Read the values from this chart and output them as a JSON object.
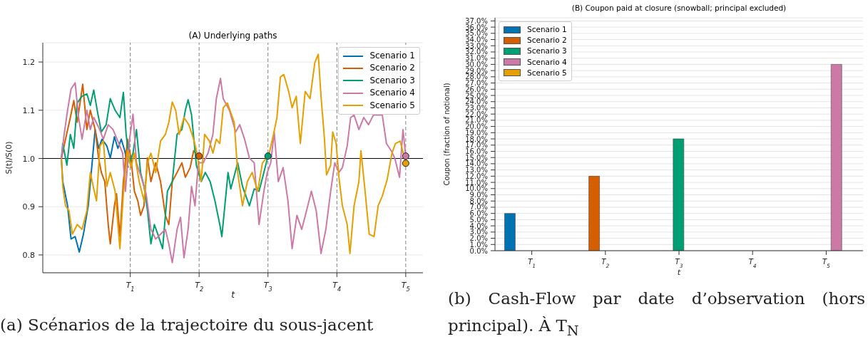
{
  "chart_data": [
    {
      "type": "line",
      "title": "(A) Underlying paths",
      "xlabel": "t",
      "ylabel": "S(t)/S(0)",
      "xlim": [
        -0.27,
        5.25
      ],
      "xticks": [
        {
          "value": 1,
          "label": "T$_{1}$"
        },
        {
          "value": 2,
          "label": "T$_{2}$"
        },
        {
          "value": 3,
          "label": "T$_{3}$"
        },
        {
          "value": 4,
          "label": "T$_{4}$"
        },
        {
          "value": 5,
          "label": "T$_{5}$"
        }
      ],
      "ylim": [
        0.763,
        1.24
      ],
      "yticks": [
        0.8,
        0.9,
        {
          "value": 1,
          "label": "1.0"
        },
        1.1,
        1.2
      ],
      "grid": "y",
      "legend": "top right",
      "marker": "none",
      "line_style": "solid",
      "ref_lines": [
        {
          "axis": "x",
          "value": 1,
          "color": "#808080",
          "line_style": "dashed"
        },
        {
          "axis": "x",
          "value": 2,
          "color": "#808080",
          "line_style": "dashed"
        },
        {
          "axis": "x",
          "value": 3,
          "color": "#808080",
          "line_style": "dashed"
        },
        {
          "axis": "x",
          "value": 4,
          "color": "#808080",
          "line_style": "dashed"
        },
        {
          "axis": "x",
          "value": 5,
          "color": "#808080",
          "line_style": "dashed"
        },
        {
          "axis": "y",
          "value": 1,
          "color": "#000000",
          "line_style": "solid"
        }
      ],
      "series": [
        {
          "name": "Scenario 1",
          "color": "#0072b2",
          "x": [
            0,
            0.02,
            0.09,
            0.14,
            0.2,
            0.26,
            0.32,
            0.39,
            0.44,
            0.49,
            0.54,
            0.59,
            0.66,
            0.71,
            0.77,
            0.82,
            0.87,
            0.92,
            0.97
          ],
          "values": [
            1,
            0.952,
            0.902,
            0.833,
            0.838,
            0.806,
            0.843,
            0.902,
            0.981,
            1.06,
            1.021,
            1.04,
            1.026,
            1.001,
            1.045,
            1.021,
            1.04,
            1.016,
            0.981
          ]
        },
        {
          "name": "Scenario 2",
          "color": "#d55e00",
          "x": [
            0,
            0.06,
            0.13,
            0.18,
            0.23,
            0.31,
            0.37,
            0.42,
            0.49,
            0.54,
            0.58,
            0.63,
            0.68,
            0.71,
            0.77,
            0.8,
            0.85,
            0.9,
            0.96,
            1.01,
            1.06,
            1.11,
            1.15,
            1.2,
            1.25,
            1.3,
            1.37,
            1.44,
            1.51,
            1.56,
            1.61,
            1.68,
            1.75,
            1.8,
            1.87,
            1.92,
            2
          ],
          "values": [
            1,
            1.04,
            1.085,
            1.12,
            1.075,
            1.154,
            1.06,
            1.1,
            1.06,
            1.001,
            0.971,
            0.952,
            0.863,
            0.823,
            0.902,
            0.927,
            0.838,
            0.952,
            1.04,
            1.001,
            0.932,
            0.912,
            0.882,
            0.902,
            1.001,
            0.952,
            0.991,
            0.952,
            0.882,
            0.863,
            0.952,
            0.971,
            0.991,
            0.961,
            0.981,
            1.016,
            1.005
          ]
        },
        {
          "name": "Scenario 3",
          "color": "#009e73",
          "x": [
            0,
            0.02,
            0.08,
            0.13,
            0.18,
            0.23,
            0.3,
            0.37,
            0.42,
            0.47,
            0.52,
            0.58,
            0.65,
            0.71,
            0.78,
            0.85,
            0.9,
            0.94,
            0.99,
            1.04,
            1.09,
            1.15,
            1.2,
            1.25,
            1.3,
            1.35,
            1.4,
            1.47,
            1.54,
            1.61,
            1.68,
            1.75,
            1.8,
            1.84,
            1.89,
            1.96,
            2.03,
            2.09,
            2.16,
            2.23,
            2.3,
            2.33,
            2.42,
            2.46,
            2.56,
            2.63,
            2.73,
            2.8,
            2.87,
            2.94,
            3
          ],
          "values": [
            1,
            1.031,
            0.986,
            1.05,
            1.021,
            1.115,
            1.129,
            1.134,
            1.11,
            1.142,
            1.1,
            1.055,
            1.07,
            1.124,
            1.1,
            1.085,
            1.137,
            1.05,
            0.991,
            1.011,
            1.06,
            0.971,
            0.942,
            0.892,
            0.823,
            0.863,
            0.843,
            0.813,
            0.932,
            0.952,
            1.05,
            1.06,
            1.1,
            1.122,
            1.09,
            0.986,
            0.952,
            0.971,
            0.952,
            0.912,
            0.863,
            0.838,
            0.971,
            0.937,
            0.991,
            0.942,
            0.902,
            0.937,
            0.932,
            0.971,
            1.005
          ]
        },
        {
          "name": "Scenario 4",
          "color": "#cc79a7",
          "x": [
            0,
            0.04,
            0.09,
            0.14,
            0.2,
            0.25,
            0.3,
            0.37,
            0.42,
            0.47,
            0.54,
            0.61,
            0.68,
            0.75,
            0.82,
            0.89,
            0.93,
            0.99,
            1.04,
            1.09,
            1.16,
            1.23,
            1.3,
            1.37,
            1.44,
            1.51,
            1.56,
            1.61,
            1.68,
            1.73,
            1.78,
            1.84,
            1.89,
            1.94,
            1.99,
            2.06,
            2.13,
            2.2,
            2.25,
            2.31,
            2.35,
            2.44,
            2.53,
            2.59,
            2.66,
            2.73,
            2.8,
            2.87,
            2.94,
            2.99,
            3.04,
            3.09,
            3.15,
            3.22,
            3.29,
            3.35,
            3.42,
            3.49,
            3.56,
            3.63,
            3.7,
            3.77,
            3.84,
            3.91,
            3.97,
            4.03,
            4.08,
            4.15,
            4.2,
            4.25,
            4.32,
            4.39,
            4.46,
            4.53,
            4.6,
            4.66,
            4.72,
            4.79,
            4.84,
            4.91,
            4.96,
            5
          ],
          "values": [
            1,
            1.05,
            1.1,
            1.144,
            1.157,
            1.085,
            1.04,
            1.1,
            1.06,
            1.085,
            1.065,
            1.04,
            1.07,
            1.06,
            1.036,
            1.011,
            0.932,
            1.04,
            1.092,
            0.991,
            0.961,
            0.927,
            0.853,
            0.833,
            0.843,
            0.853,
            0.823,
            0.784,
            0.853,
            0.878,
            0.794,
            0.853,
            0.942,
            0.902,
            0.991,
            0.991,
            1.011,
            1.05,
            1.124,
            1.166,
            1.124,
            1.1,
            1.055,
            1.07,
            1.04,
            1.001,
            0.991,
            0.863,
            0.932,
            0.971,
            0.991,
            1.055,
            0.952,
            0.981,
            0.912,
            0.813,
            0.882,
            0.853,
            0.892,
            0.932,
            0.892,
            0.803,
            0.853,
            0.932,
            0.991,
            0.971,
            0.981,
            1.026,
            1.085,
            1.09,
            1.06,
            1.085,
            1.07,
            1.09,
            1.09,
            1.09,
            1.031,
            1.016,
            1.001,
            0.961,
            1.06,
            1.005
          ]
        },
        {
          "name": "Scenario 5",
          "color": "#e69f00",
          "x": [
            0,
            0.02,
            0.06,
            0.11,
            0.16,
            0.23,
            0.3,
            0.37,
            0.42,
            0.47,
            0.51,
            0.56,
            0.61,
            0.66,
            0.71,
            0.78,
            0.85,
            0.9,
            0.96,
            1.01,
            1.06,
            1.13,
            1.2,
            1.25,
            1.3,
            1.37,
            1.44,
            1.51,
            1.56,
            1.61,
            1.66,
            1.71,
            1.78,
            1.85,
            1.92,
            1.97,
            2.03,
            2.08,
            2.15,
            2.2,
            2.25,
            2.3,
            2.35,
            2.41,
            2.51,
            2.56,
            2.63,
            2.7,
            2.77,
            2.85,
            2.92,
            3.01,
            3.08,
            3.13,
            3.18,
            3.23,
            3.3,
            3.35,
            3.41,
            3.47,
            3.54,
            3.61,
            3.68,
            3.73,
            3.77,
            3.82,
            3.85,
            3.91,
            3.94,
            3.99,
            4.03,
            4.08,
            4.15,
            4.19,
            4.25,
            4.32,
            4.35,
            4.41,
            4.47,
            4.54,
            4.6,
            4.66,
            4.73,
            4.8,
            4.85,
            4.92,
            5
          ],
          "values": [
            1,
            0.942,
            0.902,
            0.892,
            0.843,
            0.863,
            0.853,
            0.892,
            0.971,
            0.937,
            0.912,
            1.026,
            1.036,
            0.942,
            0.971,
            0.932,
            0.813,
            0.927,
            1.016,
            0.981,
            1.011,
            0.952,
            0.912,
            0.991,
            1.011,
            0.971,
            1.036,
            1.05,
            1.075,
            1.117,
            1.1,
            1.05,
            1.085,
            1.07,
            1.04,
            1.011,
            0.952,
            1.05,
            1.036,
            1.011,
            1.04,
            1.031,
            1.105,
            1.115,
            1.075,
            0.971,
            0.902,
            0.952,
            0.971,
            0.932,
            0.991,
            1.006,
            1.05,
            1.085,
            1.169,
            1.174,
            1.139,
            1.105,
            1.129,
            1.031,
            1.139,
            1.124,
            1.199,
            1.216,
            1.129,
            1.04,
            0.966,
            0.986,
            1.055,
            1.031,
            0.961,
            0.902,
            0.863,
            0.803,
            0.902,
            0.952,
            1.016,
            0.932,
            0.843,
            0.838,
            0.902,
            0.922,
            0.956,
            1.011,
            1.031,
            1.036,
            0.99
          ]
        },
        {
          "type": "scatter",
          "marker": "circle",
          "x": [
            2,
            3,
            5,
            5
          ],
          "values": [
            1.005,
            1.005,
            1.005,
            0.99
          ],
          "colors": [
            "#d55e00",
            "#009e73",
            "#cc79a7",
            "#e69f00"
          ]
        }
      ],
      "annotations": [
        "(a) Scénarios de la trajectoire du sous-jacent"
      ]
    },
    {
      "type": "bar",
      "title": "(B) Coupon paid at closure (snowball; principal excluded)",
      "xlabel": "t",
      "ylabel": "Coupon (fraction of notional)",
      "categories": [
        "T$_{1}$",
        "T$_{2}$",
        "T$_{3}$",
        "T$_{4}$",
        "T$_{5}$"
      ],
      "ylim": [
        0,
        37.5
      ],
      "yticks": [
        {
          "value": 0,
          "label": "0.0%"
        },
        {
          "value": 1,
          "label": "1.0%"
        },
        {
          "value": 2,
          "label": "2.0%"
        },
        {
          "value": 3,
          "label": "3.0%"
        },
        {
          "value": 4,
          "label": "4.0%"
        },
        {
          "value": 5,
          "label": "5.0%"
        },
        {
          "value": 6,
          "label": "6.0%"
        },
        {
          "value": 7,
          "label": "7.0%"
        },
        {
          "value": 8,
          "label": "8.0%"
        },
        {
          "value": 9,
          "label": "9.0%"
        },
        {
          "value": 10,
          "label": "10.0%"
        },
        {
          "value": 11,
          "label": "11.0%"
        },
        {
          "value": 12,
          "label": "12.0%"
        },
        {
          "value": 13,
          "label": "13.0%"
        },
        {
          "value": 14,
          "label": "14.0%"
        },
        {
          "value": 15,
          "label": "15.0%"
        },
        {
          "value": 16,
          "label": "16.0%"
        },
        {
          "value": 17,
          "label": "17.0%"
        },
        {
          "value": 18,
          "label": "18.0%"
        },
        {
          "value": 19,
          "label": "19.0%"
        },
        {
          "value": 20,
          "label": "20.0%"
        },
        {
          "value": 21,
          "label": "21.0%"
        },
        {
          "value": 22,
          "label": "22.0%"
        },
        {
          "value": 23,
          "label": "23.0%"
        },
        {
          "value": 24,
          "label": "24.0%"
        },
        {
          "value": 25,
          "label": "25.0%"
        },
        {
          "value": 26,
          "label": "26.0%"
        },
        {
          "value": 27,
          "label": "27.0%"
        },
        {
          "value": 28,
          "label": "28.0%"
        },
        {
          "value": 29,
          "label": "29.0%"
        },
        {
          "value": 30,
          "label": "30.0%"
        },
        {
          "value": 31,
          "label": "31.0%"
        },
        {
          "value": 32,
          "label": "32.0%"
        },
        {
          "value": 33,
          "label": "33.0%"
        },
        {
          "value": 34,
          "label": "34.0%"
        },
        {
          "value": 35,
          "label": "35.0%"
        },
        {
          "value": 36,
          "label": "36.0%"
        },
        {
          "value": 37,
          "label": "37.0%"
        }
      ],
      "grid": "y",
      "legend": "top left",
      "series": [
        {
          "name": "Scenario 1",
          "color": "#0072b2",
          "values": [
            6,
            0,
            0,
            0,
            0
          ]
        },
        {
          "name": "Scenario 2",
          "color": "#d55e00",
          "values": [
            0,
            12,
            0,
            0,
            0
          ]
        },
        {
          "name": "Scenario 3",
          "color": "#009e73",
          "values": [
            0,
            0,
            18,
            0,
            0
          ]
        },
        {
          "name": "Scenario 4",
          "color": "#cc79a7",
          "values": [
            0,
            0,
            0,
            0,
            30
          ]
        },
        {
          "name": "Scenario 5",
          "color": "#e69f00",
          "values": [
            0,
            0,
            0,
            0,
            0
          ]
        }
      ],
      "annotations": [
        "(b) Cash-Flow par date d’observation (hors principal). À T$_{N}$"
      ]
    }
  ]
}
